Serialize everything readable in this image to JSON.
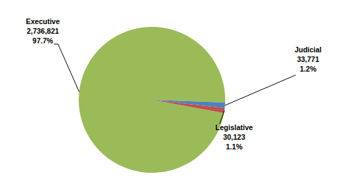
{
  "chart_data": {
    "type": "pie",
    "categories": [
      "Executive",
      "Judicial",
      "Legislative"
    ],
    "values": [
      2736821,
      33771,
      30123
    ],
    "value_labels": [
      "2,736,821",
      "33,771",
      "30,123"
    ],
    "percentages": [
      97.7,
      1.2,
      1.1
    ],
    "percentage_labels": [
      "97.7%",
      "1.2%",
      "1.1%"
    ],
    "colors": [
      "#9bbb59",
      "#4f81bd",
      "#c0504d"
    ],
    "data_labels": true
  }
}
